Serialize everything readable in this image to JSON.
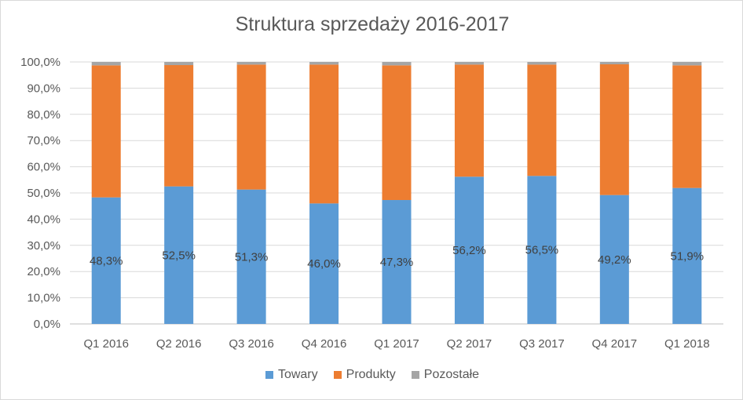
{
  "chart_data": {
    "type": "bar",
    "stacked": true,
    "title": "Struktura sprzedaży 2016-2017",
    "xlabel": "",
    "ylabel": "",
    "ylim": [
      0,
      100
    ],
    "yticks": [
      "0,0%",
      "10,0%",
      "20,0%",
      "30,0%",
      "40,0%",
      "50,0%",
      "60,0%",
      "70,0%",
      "80,0%",
      "90,0%",
      "100,0%"
    ],
    "categories": [
      "Q1 2016",
      "Q2 2016",
      "Q3 2016",
      "Q4 2016",
      "Q1 2017",
      "Q2 2017",
      "Q3 2017",
      "Q4 2017",
      "Q1 2018"
    ],
    "series": [
      {
        "name": "Towary",
        "color": "#5b9bd5",
        "values": [
          48.3,
          52.5,
          51.3,
          46.0,
          47.3,
          56.2,
          56.5,
          49.2,
          51.9
        ],
        "labels": [
          "48,3%",
          "52,5%",
          "51,3%",
          "46,0%",
          "47,3%",
          "56,2%",
          "56,5%",
          "49,2%",
          "51,9%"
        ]
      },
      {
        "name": "Produkty",
        "color": "#ed7d31",
        "values": [
          50.4,
          46.3,
          47.7,
          53.0,
          51.4,
          42.8,
          42.5,
          49.9,
          46.8
        ]
      },
      {
        "name": "Pozostałe",
        "color": "#a5a5a5",
        "values": [
          1.3,
          1.2,
          1.0,
          1.0,
          1.3,
          1.0,
          1.0,
          0.9,
          1.3
        ]
      }
    ],
    "grid": true,
    "legend": "bottom"
  }
}
